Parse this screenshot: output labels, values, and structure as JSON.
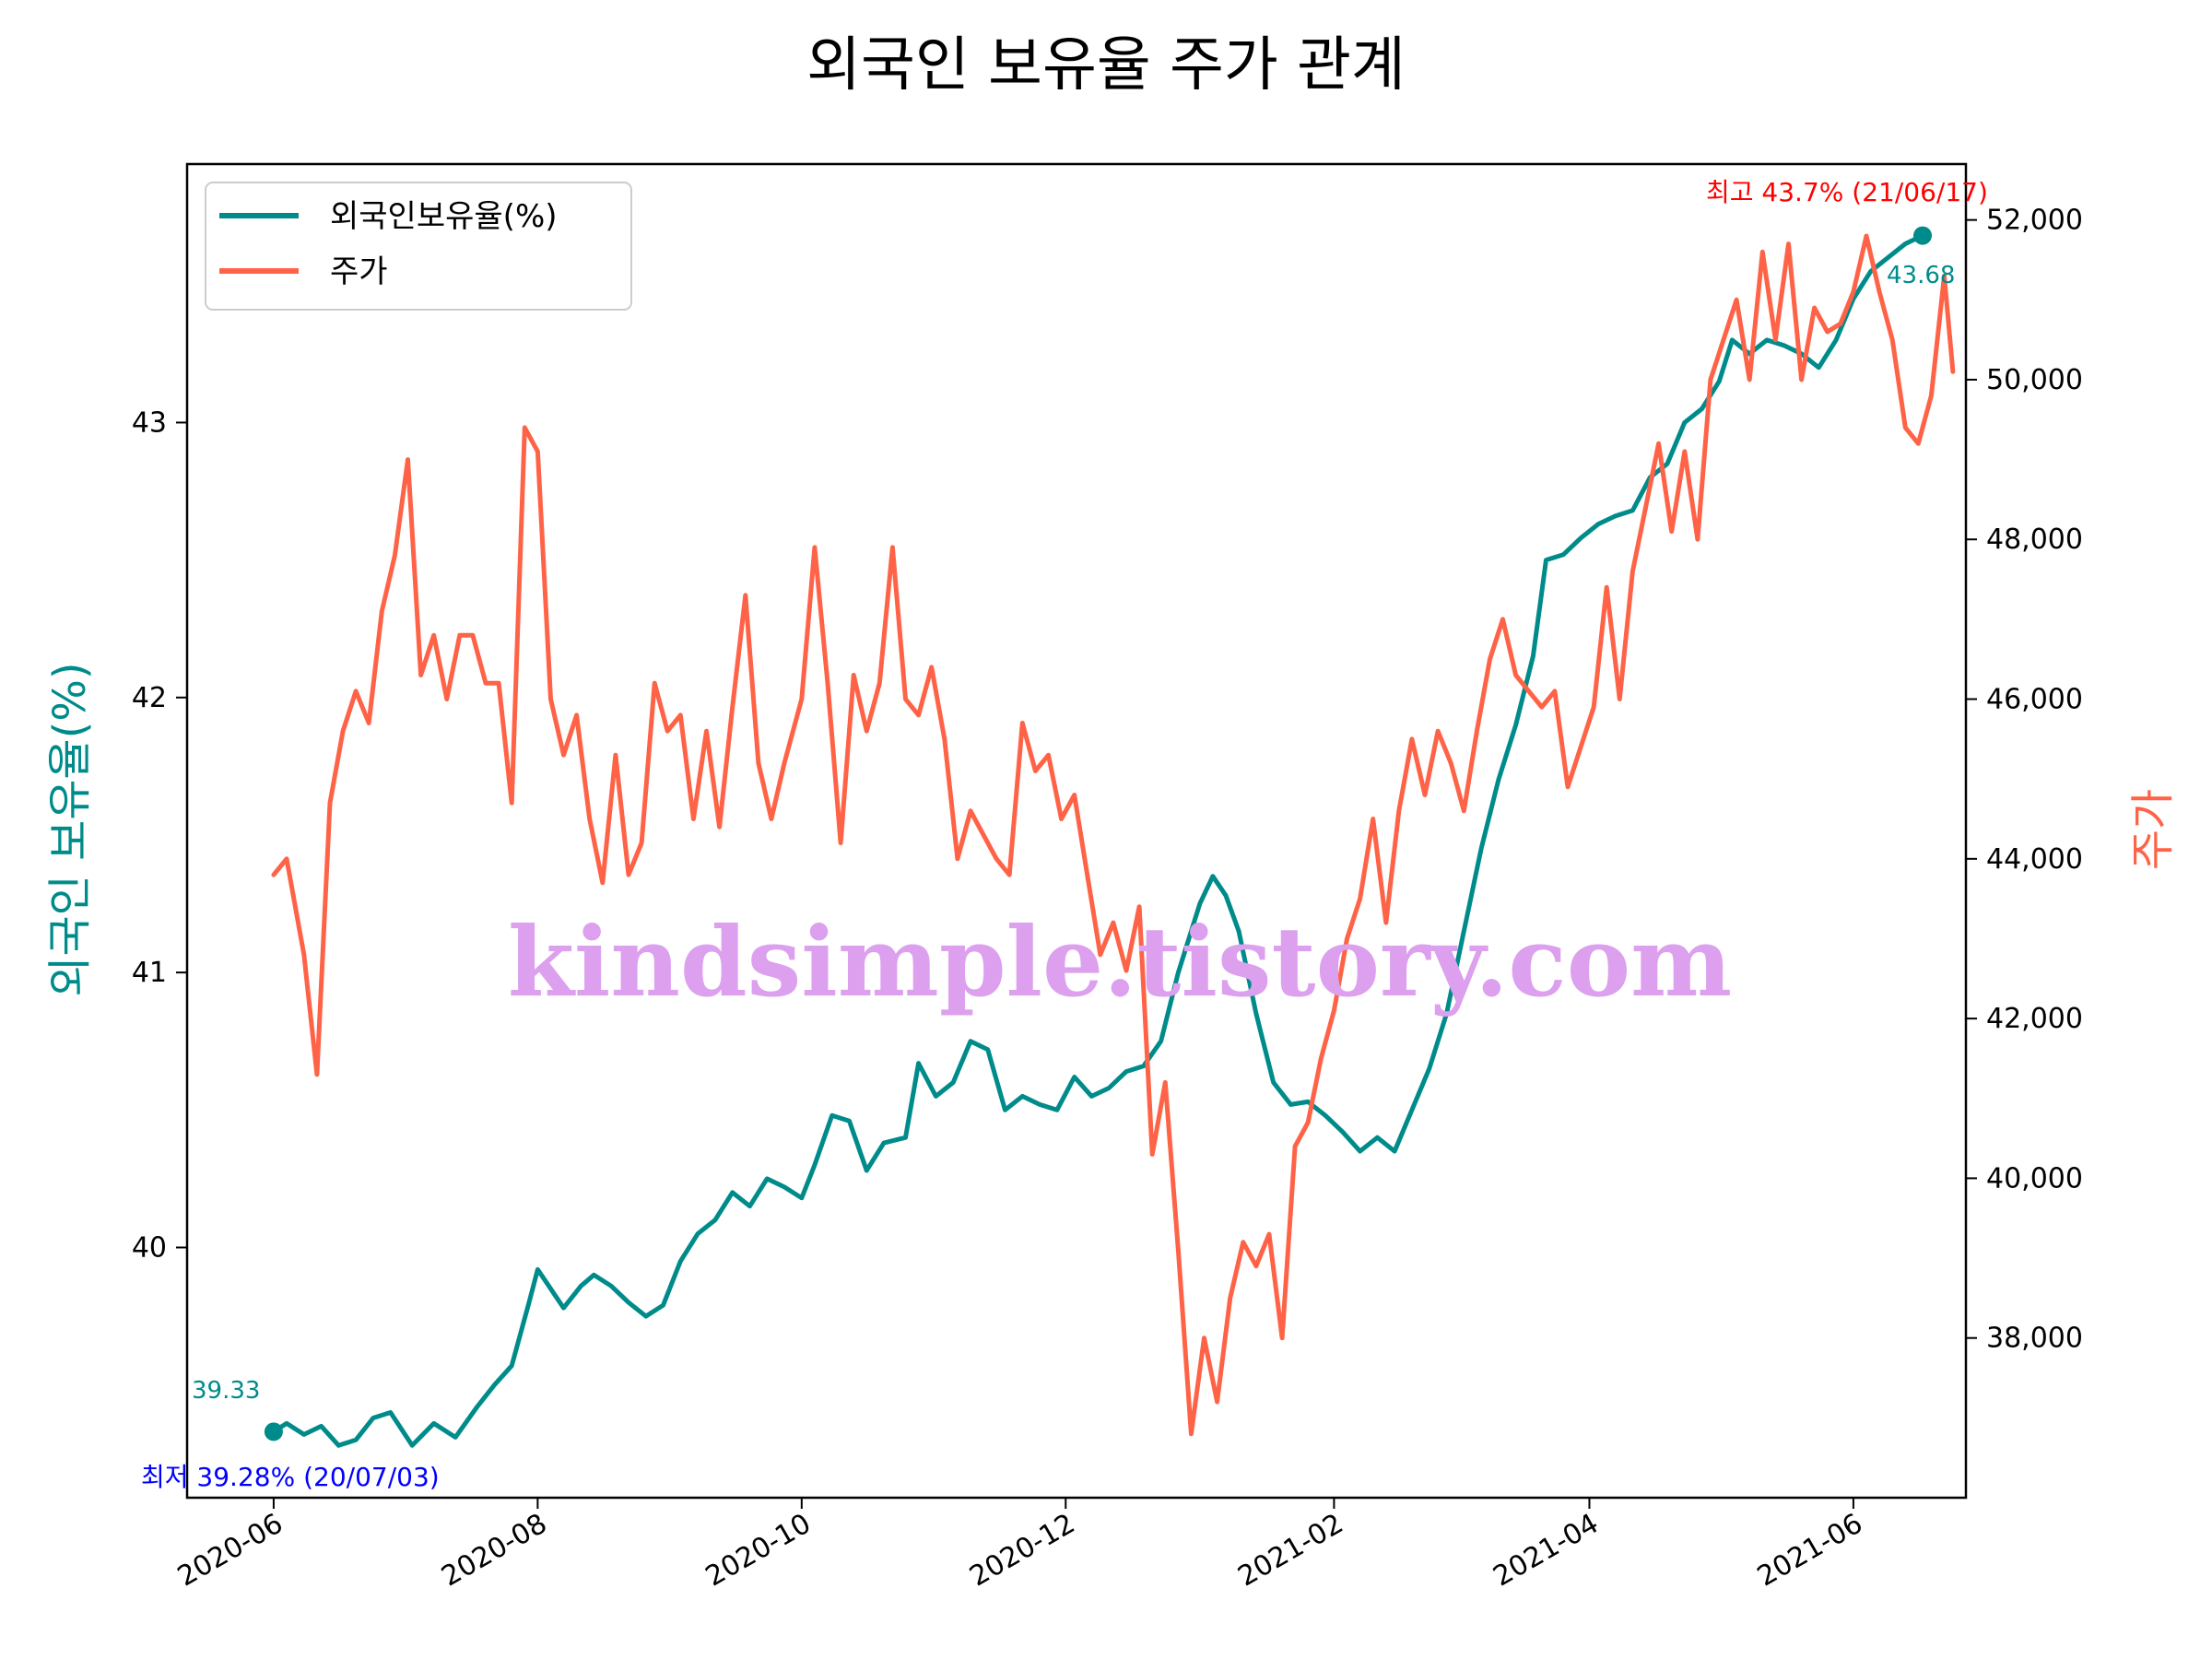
{
  "chart_data": {
    "type": "line",
    "title": "외국인 보유율 주가 관계",
    "ylabel_left": "외국인 보유율(%)",
    "ylabel_right": "주가",
    "x_ticks": [
      "2020-06",
      "2020-08",
      "2020-10",
      "2020-12",
      "2021-02",
      "2021-04",
      "2021-06"
    ],
    "y_left_ticks": [
      "40",
      "41",
      "42",
      "43"
    ],
    "y_right_ticks": [
      "38,000",
      "40,000",
      "42,000",
      "44,000",
      "46,000",
      "48,000",
      "50,000",
      "52,000"
    ],
    "ylim_left": [
      39.09,
      43.94
    ],
    "ylim_right": [
      36.0,
      52.7
    ],
    "y_right_unit_note": "values in thousands of won",
    "xlim": [
      "2020-05-12",
      "2021-06-27"
    ],
    "legend": {
      "placement": "top-left",
      "entries": [
        "외국인보유율(%)",
        "주가"
      ]
    },
    "series": [
      {
        "name": "외국인보유율(%)",
        "color": "#008b8b",
        "points": [
          [
            "2020-06-01",
            39.33
          ],
          [
            "2020-06-04",
            39.36
          ],
          [
            "2020-06-08",
            39.32
          ],
          [
            "2020-06-12",
            39.35
          ],
          [
            "2020-06-16",
            39.28
          ],
          [
            "2020-06-20",
            39.3
          ],
          [
            "2020-06-24",
            39.38
          ],
          [
            "2020-06-28",
            39.4
          ],
          [
            "2020-07-03",
            39.28
          ],
          [
            "2020-07-08",
            39.36
          ],
          [
            "2020-07-13",
            39.31
          ],
          [
            "2020-07-18",
            39.42
          ],
          [
            "2020-07-22",
            39.5
          ],
          [
            "2020-07-26",
            39.57
          ],
          [
            "2020-07-30",
            39.8
          ],
          [
            "2020-08-01",
            39.92
          ],
          [
            "2020-08-04",
            39.85
          ],
          [
            "2020-08-07",
            39.78
          ],
          [
            "2020-08-11",
            39.86
          ],
          [
            "2020-08-14",
            39.9
          ],
          [
            "2020-08-18",
            39.86
          ],
          [
            "2020-08-22",
            39.8
          ],
          [
            "2020-08-26",
            39.75
          ],
          [
            "2020-08-30",
            39.79
          ],
          [
            "2020-09-03",
            39.95
          ],
          [
            "2020-09-07",
            40.05
          ],
          [
            "2020-09-11",
            40.1
          ],
          [
            "2020-09-15",
            40.2
          ],
          [
            "2020-09-19",
            40.15
          ],
          [
            "2020-09-23",
            40.25
          ],
          [
            "2020-09-27",
            40.22
          ],
          [
            "2020-10-01",
            40.18
          ],
          [
            "2020-10-04",
            40.3
          ],
          [
            "2020-10-08",
            40.48
          ],
          [
            "2020-10-12",
            40.46
          ],
          [
            "2020-10-16",
            40.28
          ],
          [
            "2020-10-20",
            40.38
          ],
          [
            "2020-10-25",
            40.4
          ],
          [
            "2020-10-28",
            40.67
          ],
          [
            "2020-11-01",
            40.55
          ],
          [
            "2020-11-05",
            40.6
          ],
          [
            "2020-11-09",
            40.75
          ],
          [
            "2020-11-13",
            40.72
          ],
          [
            "2020-11-17",
            40.5
          ],
          [
            "2020-11-21",
            40.55
          ],
          [
            "2020-11-25",
            40.52
          ],
          [
            "2020-11-29",
            40.5
          ],
          [
            "2020-12-03",
            40.62
          ],
          [
            "2020-12-07",
            40.55
          ],
          [
            "2020-12-11",
            40.58
          ],
          [
            "2020-12-15",
            40.64
          ],
          [
            "2020-12-19",
            40.66
          ],
          [
            "2020-12-23",
            40.75
          ],
          [
            "2020-12-27",
            41.0
          ],
          [
            "2021-01-01",
            41.25
          ],
          [
            "2021-01-04",
            41.35
          ],
          [
            "2021-01-07",
            41.28
          ],
          [
            "2021-01-10",
            41.15
          ],
          [
            "2021-01-14",
            40.85
          ],
          [
            "2021-01-18",
            40.6
          ],
          [
            "2021-01-22",
            40.52
          ],
          [
            "2021-01-26",
            40.53
          ],
          [
            "2021-01-30",
            40.48
          ],
          [
            "2021-02-03",
            40.42
          ],
          [
            "2021-02-07",
            40.35
          ],
          [
            "2021-02-11",
            40.4
          ],
          [
            "2021-02-15",
            40.35
          ],
          [
            "2021-02-19",
            40.5
          ],
          [
            "2021-02-23",
            40.65
          ],
          [
            "2021-02-27",
            40.85
          ],
          [
            "2021-03-03",
            41.15
          ],
          [
            "2021-03-07",
            41.45
          ],
          [
            "2021-03-11",
            41.7
          ],
          [
            "2021-03-15",
            41.9
          ],
          [
            "2021-03-19",
            42.15
          ],
          [
            "2021-03-22",
            42.5
          ],
          [
            "2021-03-26",
            42.52
          ],
          [
            "2021-03-30",
            42.58
          ],
          [
            "2021-04-03",
            42.63
          ],
          [
            "2021-04-07",
            42.66
          ],
          [
            "2021-04-11",
            42.68
          ],
          [
            "2021-04-15",
            42.8
          ],
          [
            "2021-04-19",
            42.85
          ],
          [
            "2021-04-23",
            43.0
          ],
          [
            "2021-04-27",
            43.05
          ],
          [
            "2021-05-01",
            43.15
          ],
          [
            "2021-05-04",
            43.3
          ],
          [
            "2021-05-08",
            43.25
          ],
          [
            "2021-05-12",
            43.3
          ],
          [
            "2021-05-16",
            43.28
          ],
          [
            "2021-05-20",
            43.25
          ],
          [
            "2021-05-24",
            43.2
          ],
          [
            "2021-05-28",
            43.3
          ],
          [
            "2021-06-01",
            43.45
          ],
          [
            "2021-06-05",
            43.55
          ],
          [
            "2021-06-09",
            43.6
          ],
          [
            "2021-06-13",
            43.65
          ],
          [
            "2021-06-17",
            43.68
          ]
        ]
      },
      {
        "name": "주가",
        "color": "#ff6347",
        "points": [
          [
            "2020-06-01",
            43.8
          ],
          [
            "2020-06-04",
            44.0
          ],
          [
            "2020-06-08",
            42.8
          ],
          [
            "2020-06-11",
            41.3
          ],
          [
            "2020-06-14",
            44.7
          ],
          [
            "2020-06-17",
            45.6
          ],
          [
            "2020-06-20",
            46.1
          ],
          [
            "2020-06-23",
            45.7
          ],
          [
            "2020-06-26",
            47.1
          ],
          [
            "2020-06-29",
            47.8
          ],
          [
            "2020-07-02",
            49.0
          ],
          [
            "2020-07-05",
            46.3
          ],
          [
            "2020-07-08",
            46.8
          ],
          [
            "2020-07-11",
            46.0
          ],
          [
            "2020-07-14",
            46.8
          ],
          [
            "2020-07-17",
            46.8
          ],
          [
            "2020-07-20",
            46.2
          ],
          [
            "2020-07-23",
            46.2
          ],
          [
            "2020-07-26",
            44.7
          ],
          [
            "2020-07-29",
            49.4
          ],
          [
            "2020-08-01",
            49.1
          ],
          [
            "2020-08-04",
            46.0
          ],
          [
            "2020-08-07",
            45.3
          ],
          [
            "2020-08-10",
            45.8
          ],
          [
            "2020-08-13",
            44.5
          ],
          [
            "2020-08-16",
            43.7
          ],
          [
            "2020-08-19",
            45.3
          ],
          [
            "2020-08-22",
            43.8
          ],
          [
            "2020-08-25",
            44.2
          ],
          [
            "2020-08-28",
            46.2
          ],
          [
            "2020-08-31",
            45.6
          ],
          [
            "2020-09-03",
            45.8
          ],
          [
            "2020-09-06",
            44.5
          ],
          [
            "2020-09-09",
            45.6
          ],
          [
            "2020-09-12",
            44.4
          ],
          [
            "2020-09-15",
            45.9
          ],
          [
            "2020-09-18",
            47.3
          ],
          [
            "2020-09-21",
            45.2
          ],
          [
            "2020-09-24",
            44.5
          ],
          [
            "2020-09-27",
            45.2
          ],
          [
            "2020-10-01",
            46.0
          ],
          [
            "2020-10-04",
            47.9
          ],
          [
            "2020-10-07",
            46.2
          ],
          [
            "2020-10-10",
            44.2
          ],
          [
            "2020-10-13",
            46.3
          ],
          [
            "2020-10-16",
            45.6
          ],
          [
            "2020-10-19",
            46.2
          ],
          [
            "2020-10-22",
            47.9
          ],
          [
            "2020-10-25",
            46.0
          ],
          [
            "2020-10-28",
            45.8
          ],
          [
            "2020-10-31",
            46.4
          ],
          [
            "2020-11-03",
            45.5
          ],
          [
            "2020-11-06",
            44.0
          ],
          [
            "2020-11-09",
            44.6
          ],
          [
            "2020-11-12",
            44.3
          ],
          [
            "2020-11-15",
            44.0
          ],
          [
            "2020-11-18",
            43.8
          ],
          [
            "2020-11-21",
            45.7
          ],
          [
            "2020-11-24",
            45.1
          ],
          [
            "2020-11-27",
            45.3
          ],
          [
            "2020-11-30",
            44.5
          ],
          [
            "2020-12-03",
            44.8
          ],
          [
            "2020-12-06",
            43.8
          ],
          [
            "2020-12-09",
            42.8
          ],
          [
            "2020-12-12",
            43.2
          ],
          [
            "2020-12-15",
            42.6
          ],
          [
            "2020-12-18",
            43.4
          ],
          [
            "2020-12-21",
            40.3
          ],
          [
            "2020-12-24",
            41.2
          ],
          [
            "2020-12-27",
            39.1
          ],
          [
            "2020-12-30",
            36.8
          ],
          [
            "2021-01-02",
            38.0
          ],
          [
            "2021-01-05",
            37.2
          ],
          [
            "2021-01-08",
            38.5
          ],
          [
            "2021-01-11",
            39.2
          ],
          [
            "2021-01-14",
            38.9
          ],
          [
            "2021-01-17",
            39.3
          ],
          [
            "2021-01-20",
            38.0
          ],
          [
            "2021-01-23",
            40.4
          ],
          [
            "2021-01-26",
            40.7
          ],
          [
            "2021-01-29",
            41.5
          ],
          [
            "2021-02-01",
            42.1
          ],
          [
            "2021-02-04",
            43.0
          ],
          [
            "2021-02-07",
            43.5
          ],
          [
            "2021-02-10",
            44.5
          ],
          [
            "2021-02-13",
            43.2
          ],
          [
            "2021-02-16",
            44.6
          ],
          [
            "2021-02-19",
            45.5
          ],
          [
            "2021-02-22",
            44.8
          ],
          [
            "2021-02-25",
            45.6
          ],
          [
            "2021-02-28",
            45.2
          ],
          [
            "2021-03-03",
            44.6
          ],
          [
            "2021-03-06",
            45.6
          ],
          [
            "2021-03-09",
            46.5
          ],
          [
            "2021-03-12",
            47.0
          ],
          [
            "2021-03-15",
            46.3
          ],
          [
            "2021-03-18",
            46.1
          ],
          [
            "2021-03-21",
            45.9
          ],
          [
            "2021-03-24",
            46.1
          ],
          [
            "2021-03-27",
            44.9
          ],
          [
            "2021-03-30",
            45.4
          ],
          [
            "2021-04-02",
            45.9
          ],
          [
            "2021-04-05",
            47.4
          ],
          [
            "2021-04-08",
            46.0
          ],
          [
            "2021-04-11",
            47.6
          ],
          [
            "2021-04-14",
            48.4
          ],
          [
            "2021-04-17",
            49.2
          ],
          [
            "2021-04-20",
            48.1
          ],
          [
            "2021-04-23",
            49.1
          ],
          [
            "2021-04-26",
            48.0
          ],
          [
            "2021-04-29",
            50.0
          ],
          [
            "2021-05-02",
            50.5
          ],
          [
            "2021-05-05",
            51.0
          ],
          [
            "2021-05-08",
            50.0
          ],
          [
            "2021-05-11",
            51.6
          ],
          [
            "2021-05-14",
            50.5
          ],
          [
            "2021-05-17",
            51.7
          ],
          [
            "2021-05-20",
            50.0
          ],
          [
            "2021-05-23",
            50.9
          ],
          [
            "2021-05-26",
            50.6
          ],
          [
            "2021-05-29",
            50.7
          ],
          [
            "2021-06-01",
            51.1
          ],
          [
            "2021-06-04",
            51.8
          ],
          [
            "2021-06-07",
            51.1
          ],
          [
            "2021-06-10",
            50.5
          ],
          [
            "2021-06-13",
            49.4
          ],
          [
            "2021-06-16",
            49.2
          ],
          [
            "2021-06-19",
            49.8
          ],
          [
            "2021-06-22",
            51.3
          ],
          [
            "2021-06-24",
            50.1
          ]
        ]
      }
    ],
    "annotations": [
      {
        "id": "start",
        "text": "39.33",
        "color": "#008b8b"
      },
      {
        "id": "end",
        "text": "43.68",
        "color": "#008b8b"
      },
      {
        "id": "max",
        "text": "최고 43.7% (21/06/17)",
        "color": "#ff0000"
      },
      {
        "id": "min",
        "text": "최저 39.28% (20/07/03)",
        "color": "#0000ff"
      }
    ],
    "markers": [
      {
        "series": "외국인보유율(%)",
        "date": "2020-06-01",
        "value": 39.33
      },
      {
        "series": "외국인보유율(%)",
        "date": "2021-06-17",
        "value": 43.68
      }
    ],
    "watermark": "kindsimple.tistory.com"
  }
}
